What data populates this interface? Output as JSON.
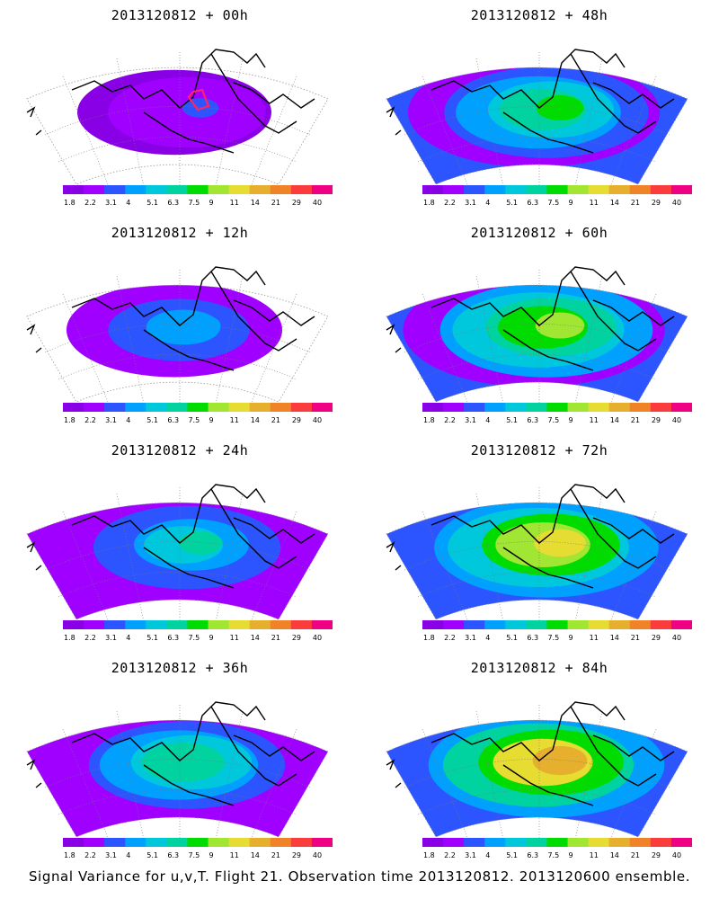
{
  "panels": [
    {
      "title": "2013120812 + 00h",
      "intensity": 0.15
    },
    {
      "title": "2013120812 + 48h",
      "intensity": 0.55
    },
    {
      "title": "2013120812 + 12h",
      "intensity": 0.3
    },
    {
      "title": "2013120812 + 60h",
      "intensity": 0.62
    },
    {
      "title": "2013120812 + 24h",
      "intensity": 0.4
    },
    {
      "title": "2013120812 + 72h",
      "intensity": 0.72
    },
    {
      "title": "2013120812 + 36h",
      "intensity": 0.48
    },
    {
      "title": "2013120812 + 84h",
      "intensity": 0.82
    }
  ],
  "colorbar": {
    "colors": [
      "#8a00e6",
      "#a000ff",
      "#2d55ff",
      "#00a0ff",
      "#00c8dc",
      "#00d2a0",
      "#00dc00",
      "#a0e632",
      "#e6dc32",
      "#e6af2d",
      "#f08228",
      "#fa3c3c",
      "#f00082"
    ],
    "labels": [
      "1.8",
      "2.2",
      "3.1",
      "4",
      "5.1",
      "6.3",
      "7.5",
      "9",
      "11",
      "14",
      "21",
      "29",
      "40"
    ]
  },
  "caption": "Signal Variance for u,v,T. Flight 21. Observation time 2013120812. 2013120600 ensemble."
}
